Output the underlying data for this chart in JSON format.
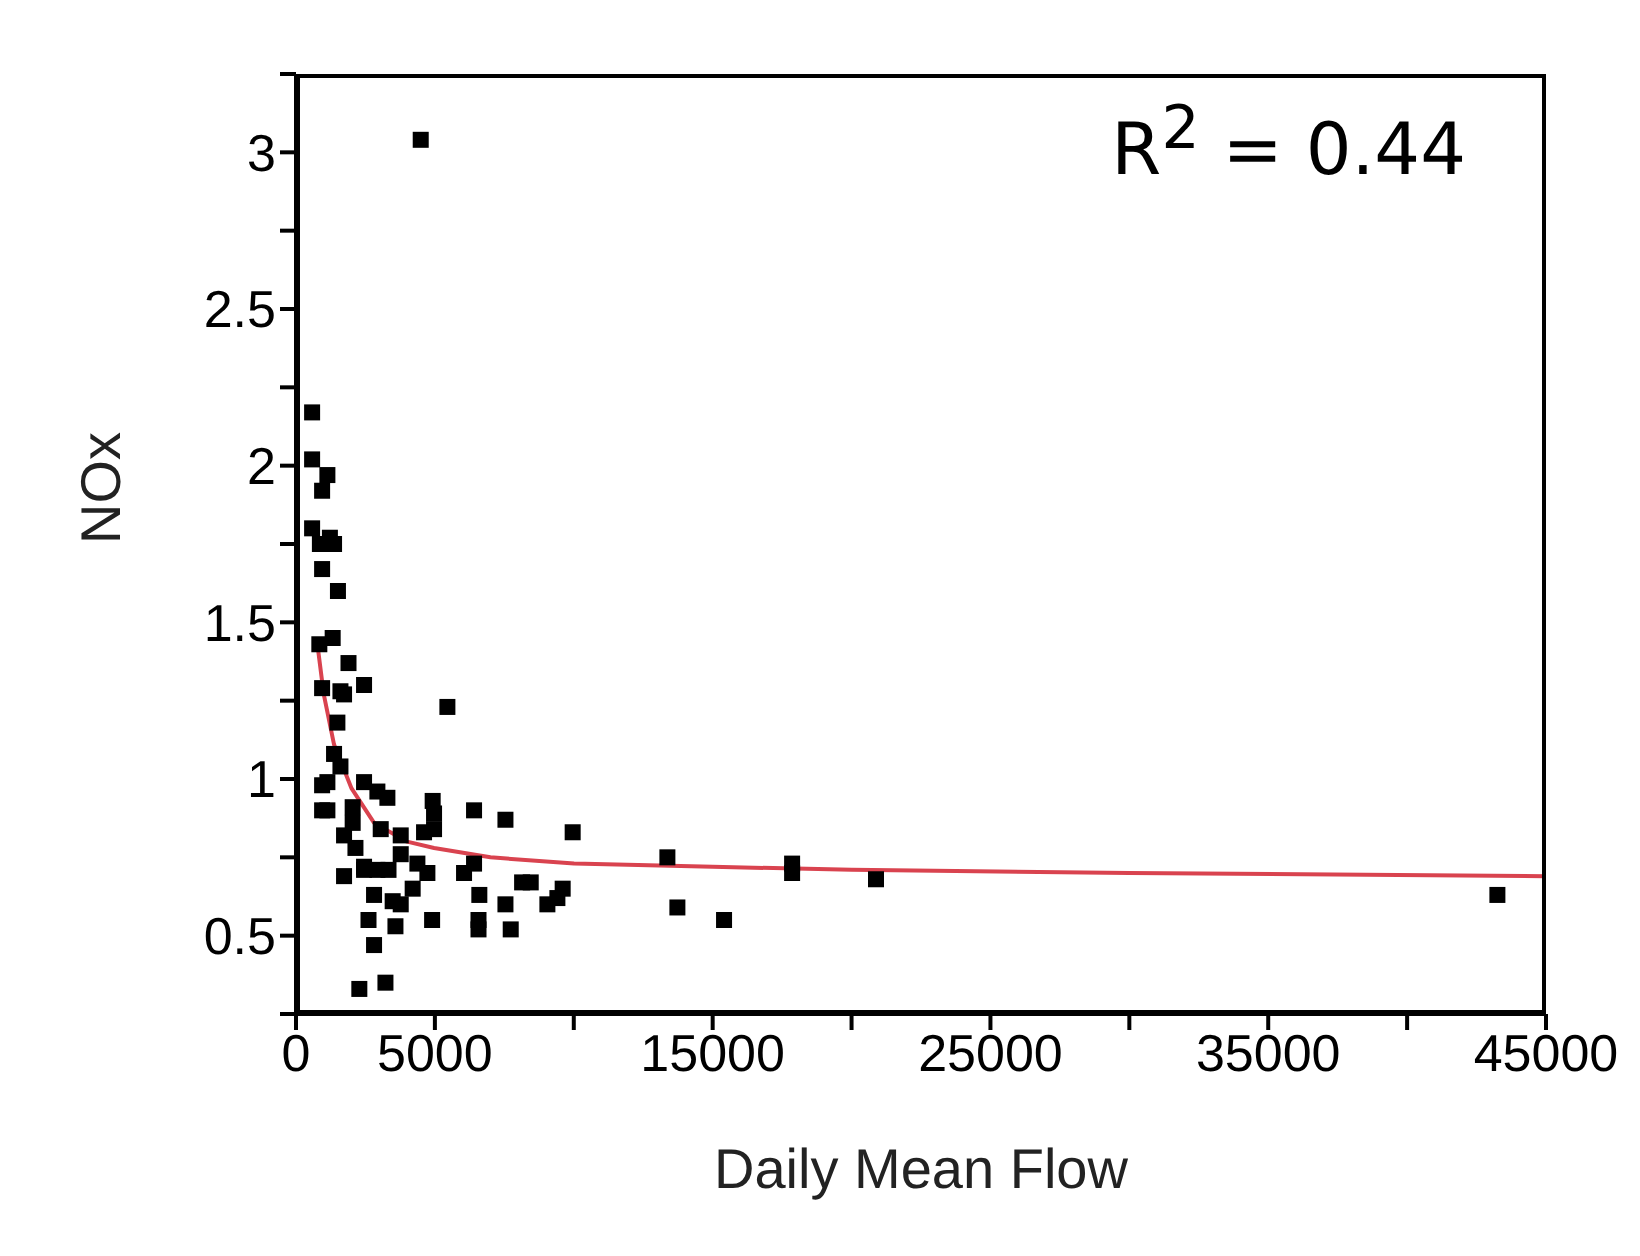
{
  "chart_data": {
    "type": "scatter",
    "xlabel": "Daily Mean Flow",
    "ylabel": "NOx",
    "annotations": [
      "R$^{2}$ = 0.44"
    ],
    "xlim": [
      0,
      45000
    ],
    "ylim": [
      0.25,
      3.25
    ],
    "xticks": [
      0,
      5000,
      {
        "value": 10000,
        "label": null
      },
      15000,
      {
        "value": 20000,
        "label": null
      },
      25000,
      {
        "value": 30000,
        "label": null
      },
      35000,
      {
        "value": 40000,
        "label": null
      },
      45000
    ],
    "yticks": [
      {
        "value": 0.25,
        "label": null
      },
      0.5,
      {
        "value": 0.75,
        "label": null
      },
      1,
      {
        "value": 1.25,
        "label": null
      },
      1.5,
      {
        "value": 1.75,
        "label": null
      },
      2,
      {
        "value": 2.25,
        "label": null
      },
      2.5,
      {
        "value": 2.75,
        "label": null
      },
      3,
      {
        "value": 3.25,
        "label": null
      }
    ],
    "marker": "square",
    "series": [
      {
        "color": "#000000",
        "x": [
          4490,
          580,
          580,
          1130,
          940,
          580,
          1220,
          860,
          1370,
          940,
          1510,
          840,
          1320,
          1890,
          2450,
          940,
          1600,
          1730,
          1490,
          5450,
          1370,
          1600,
          940,
          1130,
          2450,
          2930,
          3290,
          940,
          1130,
          2040,
          2040,
          1730,
          2140,
          3050,
          3770,
          4920,
          4970,
          4970,
          4610,
          6410,
          7540,
          9960,
          13370,
          13730,
          2450,
          2450,
          2930,
          3330,
          3770,
          4370,
          4730,
          1730,
          2810,
          3480,
          3770,
          4200,
          2610,
          3580,
          2810,
          4900,
          2280,
          3220,
          6050,
          6410,
          6600,
          6570,
          6570,
          7540,
          7730,
          8140,
          8450,
          9050,
          9410,
          9600,
          15410,
          17860,
          17860,
          20880,
          43250
        ],
        "values": [
          3.04,
          2.17,
          2.02,
          1.97,
          1.92,
          1.8,
          1.77,
          1.75,
          1.75,
          1.67,
          1.6,
          1.43,
          1.45,
          1.37,
          1.3,
          1.29,
          1.28,
          1.27,
          1.18,
          1.23,
          1.08,
          1.04,
          0.98,
          0.99,
          0.99,
          0.96,
          0.94,
          0.9,
          0.9,
          0.91,
          0.86,
          0.82,
          0.78,
          0.84,
          0.82,
          0.93,
          0.89,
          0.84,
          0.83,
          0.9,
          0.87,
          0.83,
          0.75,
          0.59,
          0.72,
          0.71,
          0.71,
          0.71,
          0.76,
          0.73,
          0.7,
          0.69,
          0.63,
          0.61,
          0.6,
          0.65,
          0.55,
          0.53,
          0.47,
          0.55,
          0.33,
          0.35,
          0.7,
          0.73,
          0.63,
          0.55,
          0.52,
          0.6,
          0.52,
          0.67,
          0.67,
          0.6,
          0.62,
          0.65,
          0.55,
          0.73,
          0.7,
          0.68,
          0.63
        ]
      },
      {
        "type": "line",
        "color": "#d9434f",
        "marker": "none",
        "line_style": "solid",
        "x": [
          770,
          1000,
          1370,
          2000,
          2810,
          4000,
          4970,
          7000,
          10010,
          15000,
          20000,
          30000,
          45000
        ],
        "values": [
          1.43,
          1.27,
          1.11,
          0.97,
          0.86,
          0.8,
          0.78,
          0.75,
          0.73,
          0.72,
          0.71,
          0.7,
          0.69
        ]
      }
    ]
  }
}
